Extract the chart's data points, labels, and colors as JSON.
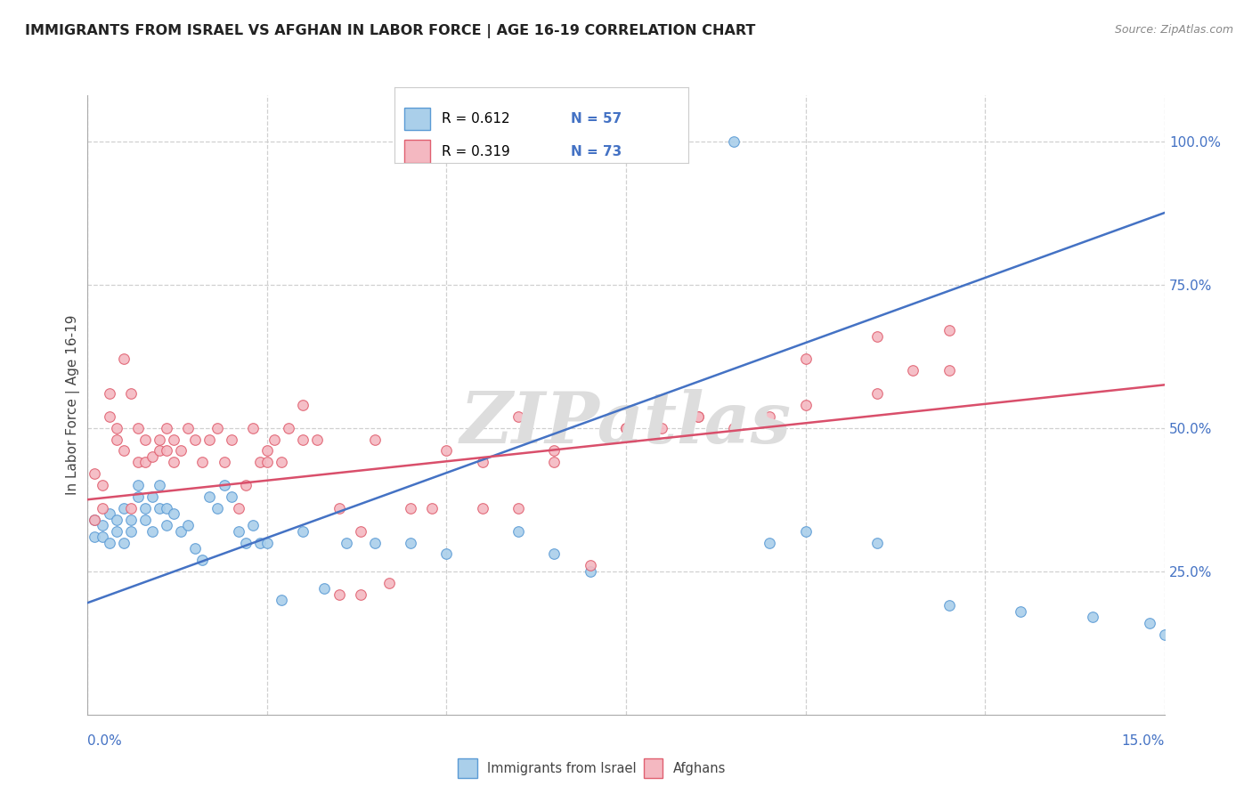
{
  "title": "IMMIGRANTS FROM ISRAEL VS AFGHAN IN LABOR FORCE | AGE 16-19 CORRELATION CHART",
  "source": "Source: ZipAtlas.com",
  "ylabel": "In Labor Force | Age 16-19",
  "xmin": 0.0,
  "xmax": 0.15,
  "ymin": 0.0,
  "ymax": 1.08,
  "yticks_vals": [
    0.25,
    0.5,
    0.75,
    1.0
  ],
  "yticks_labels": [
    "25.0%",
    "50.0%",
    "75.0%",
    "100.0%"
  ],
  "xtick_left_val": 0.0,
  "xtick_right_val": 0.15,
  "xtick_left_label": "0.0%",
  "xtick_right_label": "15.0%",
  "watermark_text": "ZIPatlas",
  "blue_scatter_color": "#aacfea",
  "blue_scatter_edge": "#5b9bd5",
  "pink_scatter_color": "#f4b8c1",
  "pink_scatter_edge": "#e06070",
  "blue_line_color": "#4472c4",
  "pink_line_color": "#d94f6b",
  "blue_trendline_x": [
    0.0,
    0.15
  ],
  "blue_trendline_y": [
    0.195,
    0.875
  ],
  "pink_trendline_x": [
    0.0,
    0.15
  ],
  "pink_trendline_y": [
    0.375,
    0.575
  ],
  "legend_R_blue": "R = 0.612",
  "legend_N_blue": "N = 57",
  "legend_R_pink": "R = 0.319",
  "legend_N_pink": "N = 73",
  "legend_label_blue": "Immigrants from Israel",
  "legend_label_pink": "Afghans",
  "blue_scatter_x": [
    0.001,
    0.001,
    0.002,
    0.002,
    0.003,
    0.003,
    0.004,
    0.004,
    0.005,
    0.005,
    0.006,
    0.006,
    0.007,
    0.007,
    0.008,
    0.008,
    0.009,
    0.009,
    0.01,
    0.01,
    0.011,
    0.011,
    0.012,
    0.013,
    0.014,
    0.015,
    0.016,
    0.017,
    0.018,
    0.019,
    0.02,
    0.021,
    0.022,
    0.023,
    0.024,
    0.025,
    0.027,
    0.03,
    0.033,
    0.036,
    0.04,
    0.045,
    0.05,
    0.06,
    0.065,
    0.07,
    0.075,
    0.08,
    0.09,
    0.095,
    0.1,
    0.11,
    0.12,
    0.13,
    0.14,
    0.148,
    0.15
  ],
  "blue_scatter_y": [
    0.34,
    0.31,
    0.33,
    0.31,
    0.35,
    0.3,
    0.34,
    0.32,
    0.36,
    0.3,
    0.34,
    0.32,
    0.4,
    0.38,
    0.36,
    0.34,
    0.38,
    0.32,
    0.4,
    0.36,
    0.36,
    0.33,
    0.35,
    0.32,
    0.33,
    0.29,
    0.27,
    0.38,
    0.36,
    0.4,
    0.38,
    0.32,
    0.3,
    0.33,
    0.3,
    0.3,
    0.2,
    0.32,
    0.22,
    0.3,
    0.3,
    0.3,
    0.28,
    0.32,
    0.28,
    0.25,
    1.0,
    1.0,
    1.0,
    0.3,
    0.32,
    0.3,
    0.19,
    0.18,
    0.17,
    0.16,
    0.14
  ],
  "pink_scatter_x": [
    0.001,
    0.001,
    0.002,
    0.002,
    0.003,
    0.003,
    0.004,
    0.004,
    0.005,
    0.005,
    0.006,
    0.006,
    0.007,
    0.007,
    0.008,
    0.008,
    0.009,
    0.01,
    0.01,
    0.011,
    0.011,
    0.012,
    0.012,
    0.013,
    0.014,
    0.015,
    0.016,
    0.017,
    0.018,
    0.019,
    0.02,
    0.021,
    0.022,
    0.023,
    0.024,
    0.025,
    0.026,
    0.027,
    0.028,
    0.03,
    0.032,
    0.035,
    0.038,
    0.04,
    0.045,
    0.05,
    0.055,
    0.06,
    0.065,
    0.07,
    0.075,
    0.08,
    0.085,
    0.09,
    0.095,
    0.1,
    0.11,
    0.12,
    0.025,
    0.03,
    0.035,
    0.038,
    0.042,
    0.048,
    0.055,
    0.06,
    0.065,
    0.075,
    0.085,
    0.1,
    0.11,
    0.115,
    0.12
  ],
  "pink_scatter_y": [
    0.34,
    0.42,
    0.4,
    0.36,
    0.56,
    0.52,
    0.48,
    0.5,
    0.46,
    0.62,
    0.36,
    0.56,
    0.44,
    0.5,
    0.48,
    0.44,
    0.45,
    0.48,
    0.46,
    0.46,
    0.5,
    0.44,
    0.48,
    0.46,
    0.5,
    0.48,
    0.44,
    0.48,
    0.5,
    0.44,
    0.48,
    0.36,
    0.4,
    0.5,
    0.44,
    0.46,
    0.48,
    0.44,
    0.5,
    0.48,
    0.48,
    0.36,
    0.32,
    0.48,
    0.36,
    0.46,
    0.44,
    0.52,
    0.44,
    0.26,
    0.5,
    0.5,
    0.52,
    0.5,
    0.52,
    0.62,
    0.66,
    0.67,
    0.44,
    0.54,
    0.21,
    0.21,
    0.23,
    0.36,
    0.36,
    0.36,
    0.46,
    0.5,
    0.52,
    0.54,
    0.56,
    0.6,
    0.6
  ],
  "grid_color": "#d0d0d0",
  "title_color": "#222222",
  "axis_label_color": "#444444",
  "tick_color": "#4472c4",
  "watermark_color": "#dddddd",
  "legend_value_color": "#4472c4",
  "legend_box_edge": "#cccccc"
}
